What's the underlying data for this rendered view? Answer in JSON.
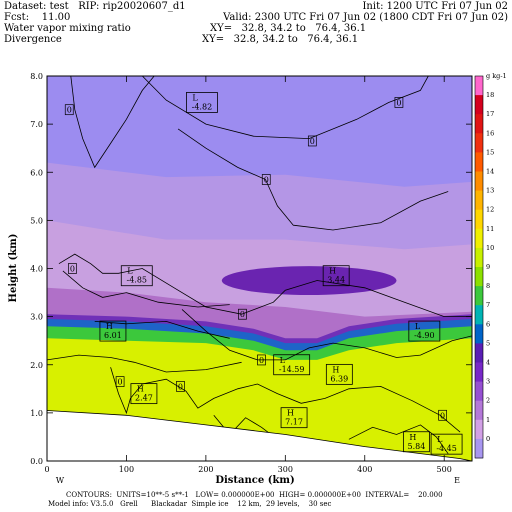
{
  "header": {
    "dataset": "Dataset: test   RIP: rip20020607_d1",
    "init": "Init: 1200 UTC Fri 07 Jun 02",
    "fcst": "Fcst:    11.00",
    "valid": "Valid: 2300 UTC Fri 07 Jun 02 (1800 CDT Fri 07 Jun 02)",
    "field1": "Water vapor mixing ratio",
    "xy1": "XY=   32.8, 34.2 to   76.4, 36.1",
    "field2": "Divergence",
    "xy2": "XY=   32.8, 34.2 to   76.4, 36.1"
  },
  "footer": {
    "line1": "CONTOURS:  UNITS=10**-5 s**-1   LOW= 0.000000E+00  HIGH= 0.000000E+00  INTERVAL=    20.000",
    "line2": "Model info: V3.5.0   Grell      Blackadar  Simple ice    12 km,  29 levels,    30 sec"
  },
  "colors": {
    "background": "#ffffff",
    "plot_fill": "#9c8cf0",
    "terrain": "#ffffff"
  },
  "chart_data": {
    "type": "heatmap",
    "xlabel": "Distance (km)",
    "ylabel": "Height (km)",
    "xlim": [
      0,
      535
    ],
    "ylim": [
      0,
      8
    ],
    "x_ticks": [
      "0",
      "100",
      "200",
      "300",
      "400",
      "500"
    ],
    "y_ticks": [
      "0.0",
      "1.0",
      "2.0",
      "3.0",
      "4.0",
      "5.0",
      "6.0",
      "7.0",
      "8.0"
    ],
    "x_ends": {
      "left": "W",
      "right": "E"
    },
    "colorbar": {
      "units": "g kg-1",
      "levels": [
        "18",
        "17",
        "16",
        "15",
        "14",
        "13",
        "12",
        "11",
        "10",
        "9",
        "8",
        "7",
        "6",
        "5",
        "4",
        "3",
        "2",
        "1",
        "0"
      ],
      "colors": [
        "#ff66cc",
        "#d4001e",
        "#e01414",
        "#f03010",
        "#ff5a00",
        "#ff8c00",
        "#ffb400",
        "#ffd700",
        "#f0f000",
        "#c8f000",
        "#8ce000",
        "#3cc83c",
        "#00b4b4",
        "#0064c8",
        "#5a1eb4",
        "#7828c8",
        "#9650d2",
        "#b478d8",
        "#d2a0e6",
        "#a896f0"
      ]
    },
    "moisture_layers": [
      {
        "level": "9",
        "color": "#d8f000",
        "top": [
          [
            0,
            2.55
          ],
          [
            100,
            2.5
          ],
          [
            200,
            2.45
          ],
          [
            260,
            2.3
          ],
          [
            300,
            2.1
          ],
          [
            340,
            2.1
          ],
          [
            380,
            2.3
          ],
          [
            440,
            2.45
          ],
          [
            535,
            2.55
          ]
        ]
      },
      {
        "level": "7",
        "color": "#3cc83c",
        "top": [
          [
            0,
            2.8
          ],
          [
            100,
            2.75
          ],
          [
            200,
            2.65
          ],
          [
            260,
            2.5
          ],
          [
            300,
            2.3
          ],
          [
            340,
            2.3
          ],
          [
            380,
            2.55
          ],
          [
            440,
            2.7
          ],
          [
            535,
            2.8
          ]
        ]
      },
      {
        "level": "6",
        "color": "#1e64c8",
        "top": [
          [
            0,
            2.95
          ],
          [
            100,
            2.9
          ],
          [
            200,
            2.8
          ],
          [
            260,
            2.65
          ],
          [
            300,
            2.45
          ],
          [
            340,
            2.45
          ],
          [
            380,
            2.7
          ],
          [
            440,
            2.85
          ],
          [
            535,
            2.95
          ]
        ]
      },
      {
        "level": "4",
        "color": "#7030b8",
        "top": [
          [
            0,
            3.05
          ],
          [
            100,
            3.0
          ],
          [
            200,
            2.9
          ],
          [
            260,
            2.75
          ],
          [
            300,
            2.55
          ],
          [
            340,
            2.55
          ],
          [
            380,
            2.8
          ],
          [
            440,
            2.95
          ],
          [
            535,
            3.05
          ]
        ]
      },
      {
        "level": "3",
        "color": "#b070c8",
        "top": [
          [
            0,
            3.6
          ],
          [
            100,
            3.5
          ],
          [
            200,
            3.3
          ],
          [
            300,
            3.2
          ],
          [
            400,
            3.0
          ],
          [
            535,
            3.1
          ]
        ]
      },
      {
        "level": "2",
        "color": "#c8a0e0",
        "top": [
          [
            0,
            5.0
          ],
          [
            150,
            4.6
          ],
          [
            300,
            4.6
          ],
          [
            450,
            4.4
          ],
          [
            535,
            4.5
          ]
        ]
      },
      {
        "level": "1",
        "color": "#b496e6",
        "top": [
          [
            0,
            6.2
          ],
          [
            150,
            5.9
          ],
          [
            300,
            5.95
          ],
          [
            450,
            5.7
          ],
          [
            535,
            5.8
          ]
        ]
      }
    ],
    "moist_pocket": {
      "level": "3",
      "center": [
        330,
        3.75
      ],
      "rx": 110,
      "ry": 0.3
    },
    "terrain_top": [
      [
        0,
        1.05
      ],
      [
        100,
        0.95
      ],
      [
        200,
        0.75
      ],
      [
        300,
        0.55
      ],
      [
        400,
        0.3
      ],
      [
        520,
        0.05
      ]
    ],
    "extrema_labels": [
      {
        "kind": "L",
        "value": "-4.82",
        "x": 195,
        "y": 7.45
      },
      {
        "kind": "L",
        "value": "-4.85",
        "x": 113,
        "y": 3.85
      },
      {
        "kind": "H",
        "value": "3.44",
        "x": 364,
        "y": 3.85
      },
      {
        "kind": "H",
        "value": "6.01",
        "x": 83,
        "y": 2.7
      },
      {
        "kind": "L",
        "value": "-14.59",
        "x": 308,
        "y": 2.0
      },
      {
        "kind": "H",
        "value": "6.39",
        "x": 368,
        "y": 1.8
      },
      {
        "kind": "L",
        "value": "-4.90",
        "x": 475,
        "y": 2.7
      },
      {
        "kind": "H",
        "value": "2.47",
        "x": 122,
        "y": 1.4
      },
      {
        "kind": "H",
        "value": "7.17",
        "x": 311,
        "y": 0.9
      },
      {
        "kind": "H",
        "value": "5.84",
        "x": 465,
        "y": 0.4
      },
      {
        "kind": "L",
        "value": "-4.45",
        "x": 503,
        "y": 0.35
      }
    ],
    "zero_labels": [
      {
        "text": "0",
        "x": 28,
        "y": 7.3
      },
      {
        "text": "0",
        "x": 443,
        "y": 7.45
      },
      {
        "text": "0",
        "x": 334,
        "y": 6.65
      },
      {
        "text": "0",
        "x": 276,
        "y": 5.85
      },
      {
        "text": "0",
        "x": 32,
        "y": 4.0
      },
      {
        "text": "0",
        "x": 246,
        "y": 3.05
      },
      {
        "text": "0",
        "x": 270,
        "y": 2.1
      },
      {
        "text": "0",
        "x": 92,
        "y": 1.65
      },
      {
        "text": "0",
        "x": 168,
        "y": 1.55
      },
      {
        "text": "0",
        "x": 498,
        "y": 0.95
      }
    ],
    "contours": [
      [
        [
          30,
          8.0
        ],
        [
          35,
          7.3
        ],
        [
          45,
          6.7
        ],
        [
          60,
          6.1
        ],
        [
          80,
          6.6
        ],
        [
          100,
          7.1
        ],
        [
          120,
          7.7
        ],
        [
          135,
          8.0
        ]
      ],
      [
        [
          120,
          8.0
        ],
        [
          150,
          7.5
        ],
        [
          200,
          7.0
        ],
        [
          260,
          6.75
        ],
        [
          330,
          6.7
        ],
        [
          390,
          7.1
        ],
        [
          430,
          7.45
        ],
        [
          470,
          7.7
        ],
        [
          480,
          8.0
        ]
      ],
      [
        [
          165,
          6.9
        ],
        [
          200,
          6.5
        ],
        [
          240,
          6.1
        ],
        [
          275,
          5.85
        ],
        [
          290,
          5.3
        ],
        [
          310,
          4.9
        ],
        [
          360,
          4.8
        ],
        [
          420,
          4.95
        ],
        [
          470,
          5.4
        ],
        [
          505,
          5.6
        ]
      ],
      [
        [
          15,
          4.1
        ],
        [
          35,
          4.3
        ],
        [
          55,
          4.1
        ],
        [
          70,
          3.9
        ],
        [
          90,
          3.9
        ],
        [
          120,
          4.0
        ],
        [
          160,
          3.6
        ],
        [
          200,
          3.2
        ],
        [
          245,
          3.05
        ],
        [
          285,
          3.3
        ],
        [
          300,
          3.55
        ],
        [
          340,
          3.75
        ],
        [
          400,
          3.6
        ],
        [
          450,
          3.3
        ],
        [
          500,
          3.0
        ],
        [
          535,
          3.0
        ]
      ],
      [
        [
          20,
          3.95
        ],
        [
          45,
          3.6
        ],
        [
          70,
          3.4
        ],
        [
          100,
          3.5
        ],
        [
          140,
          3.3
        ],
        [
          190,
          3.2
        ],
        [
          230,
          3.25
        ]
      ],
      [
        [
          170,
          3.15
        ],
        [
          200,
          2.7
        ],
        [
          230,
          2.3
        ],
        [
          265,
          2.1
        ],
        [
          300,
          2.1
        ],
        [
          330,
          2.35
        ],
        [
          360,
          2.45
        ],
        [
          400,
          2.35
        ],
        [
          440,
          2.15
        ],
        [
          470,
          2.2
        ],
        [
          510,
          2.5
        ],
        [
          535,
          2.6
        ]
      ],
      [
        [
          60,
          2.9
        ],
        [
          100,
          2.85
        ],
        [
          150,
          2.9
        ],
        [
          190,
          2.7
        ],
        [
          230,
          2.55
        ]
      ],
      [
        [
          0,
          2.1
        ],
        [
          40,
          2.2
        ],
        [
          80,
          2.15
        ],
        [
          110,
          2.05
        ],
        [
          150,
          1.85
        ],
        [
          200,
          1.9
        ],
        [
          245,
          2.05
        ]
      ],
      [
        [
          80,
          1.95
        ],
        [
          90,
          1.4
        ],
        [
          100,
          1.0
        ],
        [
          105,
          1.3
        ],
        [
          120,
          1.6
        ],
        [
          150,
          1.7
        ],
        [
          175,
          1.45
        ],
        [
          190,
          1.1
        ],
        [
          210,
          1.3
        ],
        [
          240,
          1.5
        ],
        [
          265,
          1.6
        ],
        [
          290,
          1.4
        ],
        [
          320,
          1.2
        ],
        [
          350,
          1.3
        ],
        [
          380,
          1.5
        ],
        [
          420,
          1.55
        ],
        [
          460,
          1.25
        ],
        [
          495,
          0.95
        ],
        [
          520,
          0.6
        ]
      ],
      [
        [
          210,
          0.95
        ],
        [
          230,
          0.55
        ],
        [
          250,
          0.9
        ],
        [
          270,
          0.7
        ],
        [
          290,
          0.45
        ]
      ],
      [
        [
          380,
          0.45
        ],
        [
          410,
          0.7
        ],
        [
          440,
          0.55
        ],
        [
          470,
          0.75
        ],
        [
          490,
          0.5
        ],
        [
          505,
          0.15
        ]
      ]
    ]
  }
}
